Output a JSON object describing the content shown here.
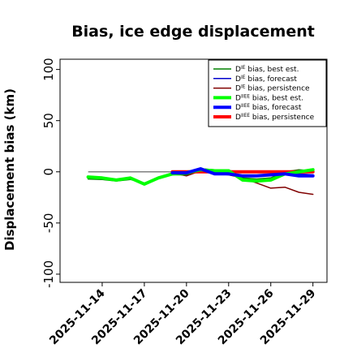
{
  "chart_data": {
    "type": "line",
    "title": "Bias, ice edge displacement",
    "xlabel": "",
    "ylabel": "Displacement bias (km)",
    "ylim": [
      -108,
      110
    ],
    "xlim": [
      "2025-11-11",
      "2025-11-30"
    ],
    "yticks": [
      100,
      50,
      0,
      -50,
      -100
    ],
    "xticks": [
      "2025-11-14",
      "2025-11-17",
      "2025-11-20",
      "2025-11-23",
      "2025-11-26",
      "2025-11-29"
    ],
    "xtick_colors": [
      "#000000",
      "#000000",
      "#008000",
      "#000000",
      "#000000",
      "#000000"
    ],
    "grid": false,
    "legend_position": "top-right",
    "reference_line": 0,
    "series": [
      {
        "name": "D^IE bias, best est.",
        "color": "#008000",
        "width": 1.5,
        "x": [
          "2025-11-13",
          "2025-11-14",
          "2025-11-15",
          "2025-11-16",
          "2025-11-17",
          "2025-11-18",
          "2025-11-19",
          "2025-11-20",
          "2025-11-21",
          "2025-11-22",
          "2025-11-23",
          "2025-11-24",
          "2025-11-25",
          "2025-11-26",
          "2025-11-27",
          "2025-11-28",
          "2025-11-29"
        ],
        "y": [
          -7,
          -7.5,
          -9,
          -7.5,
          -11,
          -6,
          -3,
          -3,
          3,
          2,
          2,
          -6,
          -7,
          -6,
          0,
          2,
          1
        ]
      },
      {
        "name": "D^IE bias, forecast",
        "color": "#0000cc",
        "width": 1.5,
        "x": [
          "2025-11-19",
          "2025-11-20",
          "2025-11-21",
          "2025-11-22",
          "2025-11-23",
          "2025-11-24",
          "2025-11-25",
          "2025-11-26",
          "2025-11-27",
          "2025-11-28",
          "2025-11-29"
        ],
        "y": [
          -1,
          -2,
          3,
          -2,
          -1,
          -4,
          -4,
          -3,
          -1,
          -2,
          -3
        ]
      },
      {
        "name": "D^IE bias, persistence",
        "color": "#800000",
        "width": 1.5,
        "x": [
          "2025-11-19",
          "2025-11-20",
          "2025-11-21",
          "2025-11-22",
          "2025-11-23",
          "2025-11-24",
          "2025-11-25",
          "2025-11-26",
          "2025-11-27",
          "2025-11-28",
          "2025-11-29"
        ],
        "y": [
          -1,
          -4,
          1,
          -2,
          -3,
          -6,
          -11,
          -16,
          -15,
          -20,
          -22
        ]
      },
      {
        "name": "D^IIEE bias, best est.",
        "color": "#00ff00",
        "width": 4,
        "x": [
          "2025-11-13",
          "2025-11-14",
          "2025-11-15",
          "2025-11-16",
          "2025-11-17",
          "2025-11-18",
          "2025-11-19",
          "2025-11-20",
          "2025-11-21",
          "2025-11-22",
          "2025-11-23",
          "2025-11-24",
          "2025-11-25",
          "2025-11-26",
          "2025-11-27",
          "2025-11-28",
          "2025-11-29"
        ],
        "y": [
          -5,
          -6,
          -8,
          -6,
          -12,
          -6,
          -2,
          -1,
          2,
          1,
          1,
          -8,
          -9,
          -8,
          -2,
          0,
          2
        ]
      },
      {
        "name": "D^IIEE bias, forecast",
        "color": "#0000ff",
        "width": 4,
        "x": [
          "2025-11-19",
          "2025-11-20",
          "2025-11-21",
          "2025-11-22",
          "2025-11-23",
          "2025-11-24",
          "2025-11-25",
          "2025-11-26",
          "2025-11-27",
          "2025-11-28",
          "2025-11-29"
        ],
        "y": [
          -1,
          -1,
          3,
          -2,
          -2,
          -4,
          -4,
          -3,
          -2,
          -4,
          -4
        ]
      },
      {
        "name": "D^IIEE bias, persistence",
        "color": "#ff0000",
        "width": 4,
        "x": [
          "2025-11-19",
          "2025-11-20",
          "2025-11-21",
          "2025-11-22",
          "2025-11-23",
          "2025-11-24",
          "2025-11-25",
          "2025-11-26",
          "2025-11-27",
          "2025-11-28",
          "2025-11-29"
        ],
        "y": [
          0,
          0,
          0,
          0,
          0,
          0,
          0,
          0,
          0,
          0,
          0
        ]
      }
    ],
    "legend": [
      {
        "base": "D",
        "sup": "IE",
        "text": " bias, best est.",
        "color": "#008000",
        "width": 1.5
      },
      {
        "base": "D",
        "sup": "IE",
        "text": " bias, forecast",
        "color": "#0000cc",
        "width": 1.5
      },
      {
        "base": "D",
        "sup": "IE",
        "text": " bias, persistence",
        "color": "#800000",
        "width": 1.5
      },
      {
        "base": "D",
        "sup": "IIEE",
        "text": " bias, best est.",
        "color": "#00ff00",
        "width": 4
      },
      {
        "base": "D",
        "sup": "IIEE",
        "text": " bias, forecast",
        "color": "#0000ff",
        "width": 4
      },
      {
        "base": "D",
        "sup": "IIEE",
        "text": " bias, persistence",
        "color": "#ff0000",
        "width": 4
      }
    ]
  }
}
